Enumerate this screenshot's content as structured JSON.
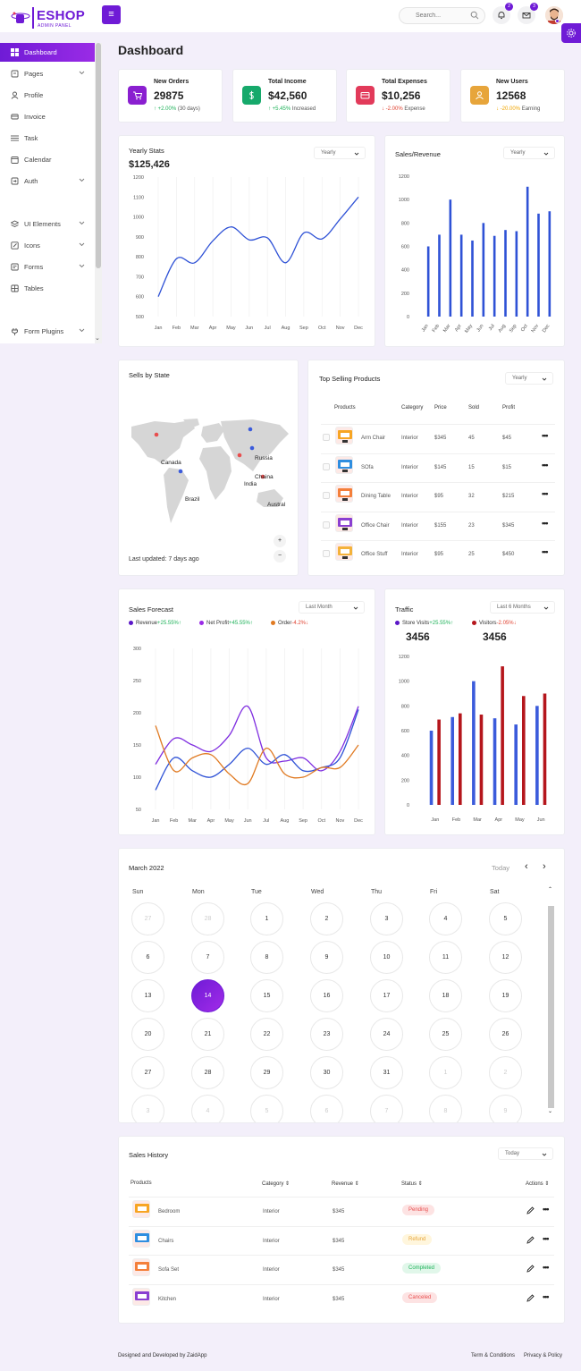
{
  "brand": {
    "name": "ESHOP",
    "subtitle": "ADMIN PANEL",
    "accent": "#6f1bd6"
  },
  "header": {
    "search_placeholder": "Search...",
    "notifications_count": "2",
    "messages_count": "3"
  },
  "sidebar": {
    "items": [
      {
        "label": "Dashboard",
        "icon": "dashboard-icon",
        "active": true
      },
      {
        "label": "Pages",
        "icon": "pages-icon",
        "has_children": true
      },
      {
        "label": "Profile",
        "icon": "user-icon"
      },
      {
        "label": "Invoice",
        "icon": "invoice-icon"
      },
      {
        "label": "Task",
        "icon": "list-icon"
      },
      {
        "label": "Calendar",
        "icon": "calendar-icon"
      },
      {
        "label": "Auth",
        "icon": "login-icon",
        "has_children": true
      },
      {
        "label": "UI Elements",
        "icon": "layers-icon",
        "has_children": true
      },
      {
        "label": "Icons",
        "icon": "edit-icon",
        "has_children": true
      },
      {
        "label": "Forms",
        "icon": "forms-icon",
        "has_children": true
      },
      {
        "label": "Tables",
        "icon": "table-icon"
      },
      {
        "label": "Form Plugins",
        "icon": "plug-icon",
        "has_children": true
      }
    ]
  },
  "page_title": "Dashboard",
  "stats": [
    {
      "label": "New Orders",
      "value": "29875",
      "change": "+2.00%",
      "note": "(30 days)",
      "trend": "up",
      "color": "#8a1fd0"
    },
    {
      "label": "Total Income",
      "value": "$42,560",
      "change": "+5.45%",
      "note": "Increased",
      "trend": "up",
      "color": "#16a96b"
    },
    {
      "label": "Total Expenses",
      "value": "$10,256",
      "change": "-2.00%",
      "note": "Expense",
      "trend": "down",
      "color": "#e23a5a"
    },
    {
      "label": "New Users",
      "value": "12568",
      "change": "-20.00%",
      "note": "Earning",
      "trend": "warn",
      "color": "#e7a53b"
    }
  ],
  "yearly_stats": {
    "title": "Yearly Stats",
    "total": "$125,426",
    "filter": "Yearly"
  },
  "sales_revenue": {
    "title": "Sales/Revenue",
    "filter": "Yearly"
  },
  "sells_by_state": {
    "title": "Sells by State",
    "updated": "Last updated: 7 days ago",
    "markers": [
      "Canada",
      "Russia",
      "Chaina",
      "India",
      "Brazil",
      "Austral"
    ],
    "zoom_in": "+",
    "zoom_out": "−"
  },
  "top_products": {
    "title": "Top Selling Products",
    "filter": "Yearly",
    "headers": [
      "Products",
      "Category",
      "Price",
      "Sold",
      "Profit"
    ],
    "rows": [
      {
        "name": "Arm Chair",
        "category": "Interior",
        "price": "$345",
        "sold": "45",
        "profit": "$45"
      },
      {
        "name": "SOfa",
        "category": "Interior",
        "price": "$145",
        "sold": "15",
        "profit": "$15"
      },
      {
        "name": "Dining Table",
        "category": "Interior",
        "price": "$95",
        "sold": "32",
        "profit": "$215"
      },
      {
        "name": "Office Chair",
        "category": "Interior",
        "price": "$155",
        "sold": "23",
        "profit": "$345"
      },
      {
        "name": "Office Stuff",
        "category": "Interior",
        "price": "$95",
        "sold": "25",
        "profit": "$450"
      }
    ]
  },
  "sales_forecast": {
    "title": "Sales Forecast",
    "filter": "Last Month",
    "legend": [
      {
        "name": "Revenue",
        "change": "+25.55%",
        "arrow": "↑",
        "trend": "up",
        "color": "#5b17c8"
      },
      {
        "name": "Net Profit",
        "change": "+45.55%",
        "arrow": "↑",
        "trend": "up",
        "color": "#9a2be6"
      },
      {
        "name": "Order",
        "change": "-4.2%",
        "arrow": "↓",
        "trend": "down",
        "color": "#e07a22"
      }
    ]
  },
  "traffic": {
    "title": "Traffic",
    "filter": "Last 6 Months",
    "legend": [
      {
        "name": "Store Visits",
        "change": "+25.55%",
        "arrow": "↑",
        "trend": "up",
        "value": "3456",
        "color": "#5b17c8"
      },
      {
        "name": "Visitors",
        "change": "-2.05%",
        "arrow": "↓",
        "trend": "down",
        "value": "3456",
        "color": "#b5161c"
      }
    ]
  },
  "calendar": {
    "month": "March 2022",
    "today_label": "Today",
    "weekdays": [
      "Sun",
      "Mon",
      "Tue",
      "Wed",
      "Thu",
      "Fri",
      "Sat"
    ],
    "weeks": [
      [
        "27",
        "28",
        "1",
        "2",
        "3",
        "4",
        "5"
      ],
      [
        "6",
        "7",
        "8",
        "9",
        "10",
        "11",
        "12"
      ],
      [
        "13",
        "14",
        "15",
        "16",
        "17",
        "18",
        "19"
      ],
      [
        "20",
        "21",
        "22",
        "23",
        "24",
        "25",
        "26"
      ],
      [
        "27",
        "28",
        "29",
        "30",
        "31",
        "1",
        "2"
      ],
      [
        "3",
        "4",
        "5",
        "6",
        "7",
        "8",
        "9"
      ]
    ],
    "selected": "14"
  },
  "sales_history": {
    "title": "Sales History",
    "filter": "Today",
    "headers": [
      "Products",
      "Category",
      "Revenue",
      "Status",
      "Actions"
    ],
    "rows": [
      {
        "name": "Bedroom",
        "category": "Interior",
        "revenue": "$345",
        "status": "Pending"
      },
      {
        "name": "Chairs",
        "category": "Interior",
        "revenue": "$345",
        "status": "Refund"
      },
      {
        "name": "Sofa Set",
        "category": "Interior",
        "revenue": "$345",
        "status": "Completed"
      },
      {
        "name": "Kitchen",
        "category": "Interior",
        "revenue": "$345",
        "status": "Canceled"
      }
    ]
  },
  "footer": {
    "credit": "Designed and Developed by ZaidApp",
    "links": [
      "Term & Conditions",
      "Privacy & Policy"
    ]
  },
  "chart_data": [
    {
      "type": "line",
      "title": "Yearly Stats",
      "categories": [
        "Jan",
        "Feb",
        "Mar",
        "Apr",
        "May",
        "Jun",
        "Jul",
        "Aug",
        "Sep",
        "Oct",
        "Nov",
        "Dec"
      ],
      "series": [
        {
          "values": [
            600,
            790,
            770,
            880,
            950,
            885,
            895,
            770,
            920,
            890,
            990,
            1100
          ],
          "color": "#2f52d6"
        }
      ],
      "ylim": [
        500,
        1200
      ],
      "yticks": [
        500,
        600,
        700,
        800,
        900,
        1000,
        1100,
        1200
      ],
      "grid": true
    },
    {
      "type": "bar",
      "title": "Sales/Revenue",
      "categories": [
        "Jan",
        "Feb",
        "Mar",
        "Apr",
        "May",
        "Jun",
        "Jul",
        "Aug",
        "Sep",
        "Oct",
        "Nov",
        "Dec"
      ],
      "series": [
        {
          "values": [
            600,
            700,
            1000,
            700,
            650,
            800,
            690,
            740,
            730,
            1110,
            880,
            900
          ],
          "color": "#2f52d6"
        }
      ],
      "ylim": [
        0,
        1200
      ],
      "yticks": [
        0,
        200,
        400,
        600,
        800,
        1000,
        1200
      ]
    },
    {
      "type": "line",
      "title": "Sales Forecast",
      "categories": [
        "Jan",
        "Feb",
        "Mar",
        "Apr",
        "May",
        "Jun",
        "Jul",
        "Aug",
        "Sep",
        "Oct",
        "Nov",
        "Dec"
      ],
      "series": [
        {
          "name": "Revenue",
          "values": [
            120,
            160,
            150,
            140,
            165,
            210,
            130,
            125,
            130,
            110,
            140,
            210
          ],
          "color": "#7f2ee0"
        },
        {
          "name": "Net Profit",
          "values": [
            80,
            130,
            110,
            100,
            120,
            145,
            120,
            135,
            110,
            115,
            130,
            205
          ],
          "color": "#2f52d6"
        },
        {
          "name": "Order",
          "values": [
            180,
            110,
            130,
            135,
            105,
            90,
            145,
            105,
            100,
            115,
            115,
            150
          ],
          "color": "#e07a22"
        }
      ],
      "ylim": [
        50,
        300
      ],
      "yticks": [
        50,
        100,
        150,
        200,
        250,
        300
      ],
      "grid": true
    },
    {
      "type": "bar",
      "title": "Traffic",
      "categories": [
        "Jan",
        "Feb",
        "Mar",
        "Apr",
        "May",
        "Jun"
      ],
      "series": [
        {
          "name": "Store Visits",
          "values": [
            600,
            710,
            1000,
            700,
            650,
            800
          ],
          "color": "#3b5bdb"
        },
        {
          "name": "Visitors",
          "values": [
            690,
            740,
            730,
            1120,
            880,
            900
          ],
          "color": "#b5161c"
        }
      ],
      "ylim": [
        0,
        1200
      ],
      "yticks": [
        0,
        200,
        400,
        600,
        800,
        1000,
        1200
      ]
    }
  ]
}
